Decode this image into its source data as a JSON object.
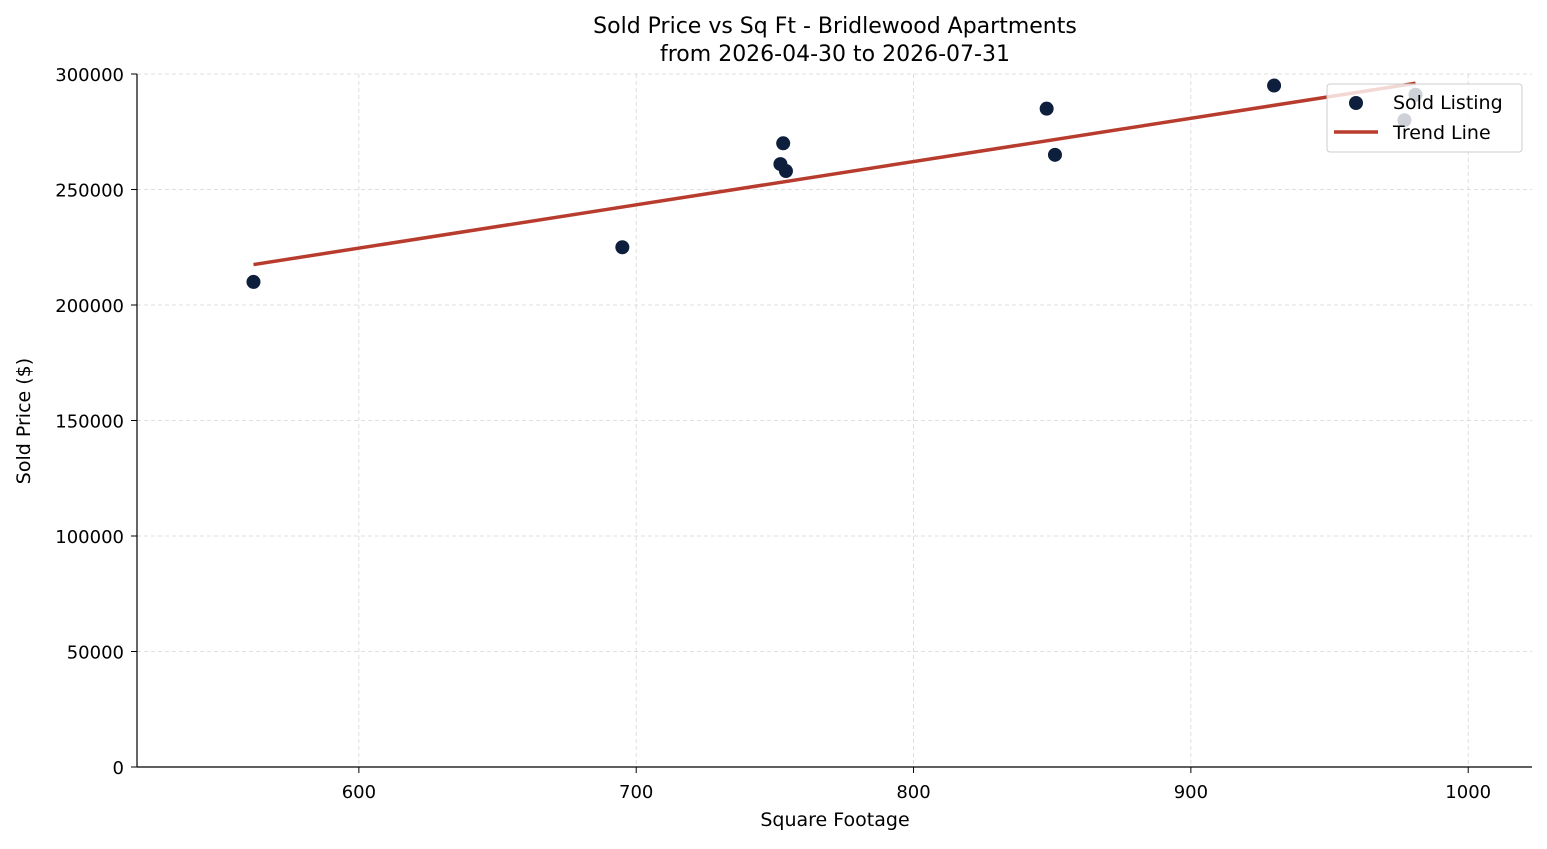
{
  "chart_data": {
    "type": "scatter",
    "title": "Sold Price vs Sq Ft - Bridlewood Apartments",
    "subtitle": "from 2026-04-30 to 2026-07-31",
    "xlabel": "Square Footage",
    "ylabel": "Sold Price ($)",
    "xlim": [
      520,
      1023
    ],
    "ylim": [
      0,
      300000
    ],
    "x_ticks": [
      600,
      700,
      800,
      900,
      1000
    ],
    "y_ticks": [
      0,
      50000,
      100000,
      150000,
      200000,
      250000,
      300000
    ],
    "grid": true,
    "legend_position": "top-right",
    "series": [
      {
        "name": "Sold Listing",
        "type": "scatter",
        "color": "#0d1f3c",
        "points": [
          {
            "x": 562,
            "y": 210000
          },
          {
            "x": 695,
            "y": 225000
          },
          {
            "x": 752,
            "y": 261000
          },
          {
            "x": 753,
            "y": 270000
          },
          {
            "x": 754,
            "y": 258000
          },
          {
            "x": 848,
            "y": 285000
          },
          {
            "x": 851,
            "y": 265000
          },
          {
            "x": 930,
            "y": 295000
          },
          {
            "x": 977,
            "y": 280000
          },
          {
            "x": 981,
            "y": 291000
          }
        ]
      },
      {
        "name": "Trend Line",
        "type": "line",
        "color": "#b83c2e",
        "points": [
          {
            "x": 562,
            "y": 217500
          },
          {
            "x": 981,
            "y": 296000
          }
        ]
      }
    ]
  }
}
